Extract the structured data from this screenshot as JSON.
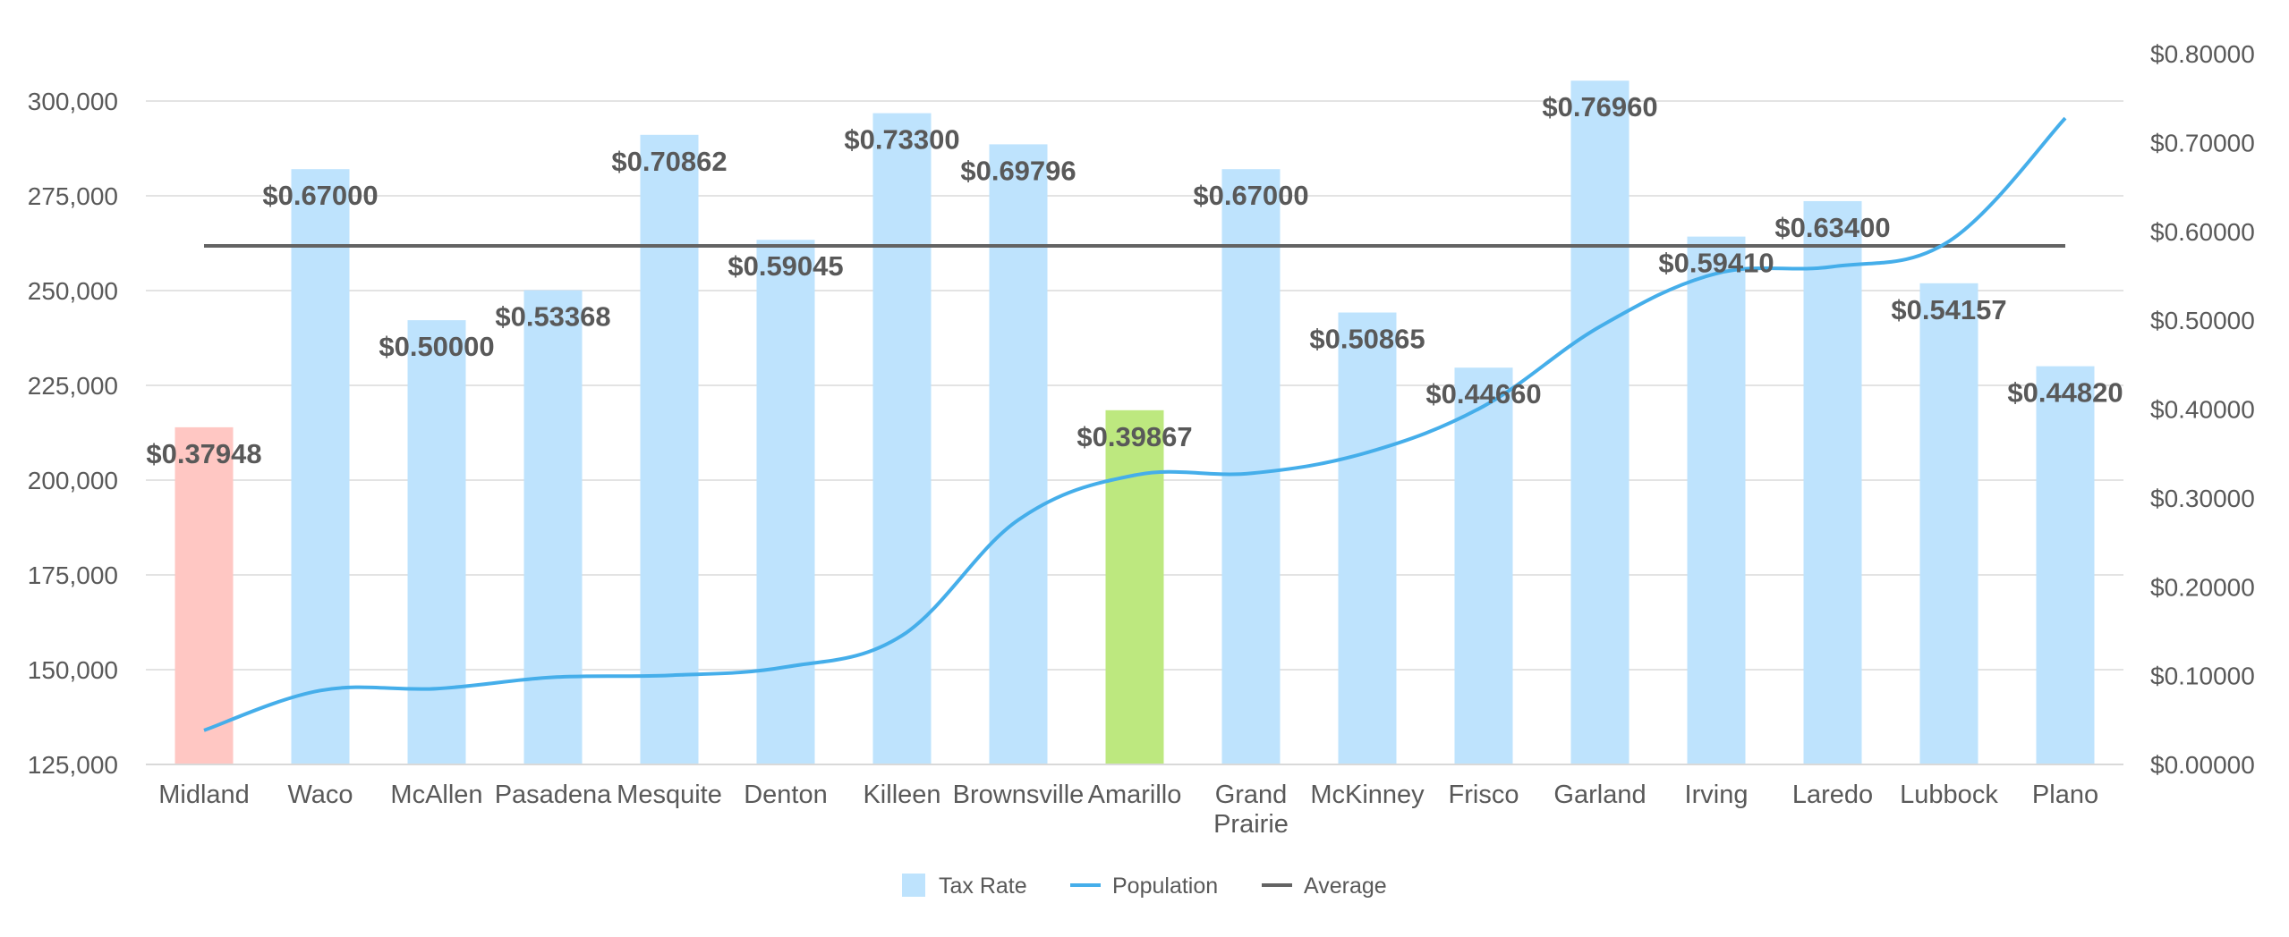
{
  "chart_data": {
    "type": "bar",
    "categories": [
      [
        "Midland"
      ],
      [
        "Waco"
      ],
      [
        "McAllen"
      ],
      [
        "Pasadena"
      ],
      [
        "Mesquite"
      ],
      [
        "Denton"
      ],
      [
        "Killeen"
      ],
      [
        "Brownsville"
      ],
      [
        "Amarillo"
      ],
      [
        "Grand",
        "Prairie"
      ],
      [
        "McKinney"
      ],
      [
        "Frisco"
      ],
      [
        "Garland"
      ],
      [
        "Irving"
      ],
      [
        "Laredo"
      ],
      [
        "Lubbock"
      ],
      [
        "Plano"
      ]
    ],
    "series": [
      {
        "name": "Tax Rate",
        "kind": "bar",
        "axis": "right",
        "values": [
          0.37948,
          0.67,
          0.5,
          0.53368,
          0.70862,
          0.59045,
          0.733,
          0.69796,
          0.39867,
          0.67,
          0.50865,
          0.4466,
          0.7696,
          0.5941,
          0.634,
          0.54157,
          0.4482
        ],
        "labels": [
          "$0.37948",
          "$0.67000",
          "$0.50000",
          "$0.53368",
          "$0.70862",
          "$0.59045",
          "$0.73300",
          "$0.69796",
          "$0.39867",
          "$0.67000",
          "$0.50865",
          "$0.44660",
          "$0.76960",
          "$0.59410",
          "$0.63400",
          "$0.54157",
          "$0.44820"
        ],
        "colors": [
          "#ffc7c3",
          "#bee3fd",
          "#bee3fd",
          "#bee3fd",
          "#bee3fd",
          "#bee3fd",
          "#bee3fd",
          "#bee3fd",
          "#bde87f",
          "#bee3fd",
          "#bee3fd",
          "#bee3fd",
          "#bee3fd",
          "#bee3fd",
          "#bee3fd",
          "#bee3fd",
          "#bee3fd"
        ]
      },
      {
        "name": "Population",
        "kind": "line",
        "axis": "left",
        "color": "#45aeea",
        "values": [
          134000,
          144500,
          145000,
          148000,
          148500,
          150700,
          159000,
          189500,
          201300,
          201800,
          207300,
          219500,
          240500,
          254500,
          256300,
          263000,
          295500
        ]
      },
      {
        "name": "Average",
        "kind": "line",
        "axis": "right",
        "color": "#636363",
        "value": 0.5836
      }
    ],
    "y_left": {
      "range": [
        125000,
        312500
      ],
      "ticks": [
        125000,
        150000,
        175000,
        200000,
        225000,
        250000,
        275000,
        300000
      ],
      "tick_labels": [
        "125,000",
        "150,000",
        "175,000",
        "200,000",
        "225,000",
        "250,000",
        "275,000",
        "300,000"
      ]
    },
    "y_right": {
      "range": [
        0,
        0.8
      ],
      "ticks": [
        0,
        0.1,
        0.2,
        0.3,
        0.4,
        0.5,
        0.6,
        0.7,
        0.8
      ],
      "tick_labels": [
        "$0.00000",
        "$0.10000",
        "$0.20000",
        "$0.30000",
        "$0.40000",
        "$0.50000",
        "$0.60000",
        "$0.70000",
        "$0.80000"
      ]
    },
    "grid": true,
    "legend": {
      "position": "bottom",
      "entries": [
        {
          "name": "Tax Rate",
          "symbol": "square",
          "color": "#bee3fd"
        },
        {
          "name": "Population",
          "symbol": "line",
          "color": "#45aeea"
        },
        {
          "name": "Average",
          "symbol": "line",
          "color": "#636363"
        }
      ]
    }
  }
}
